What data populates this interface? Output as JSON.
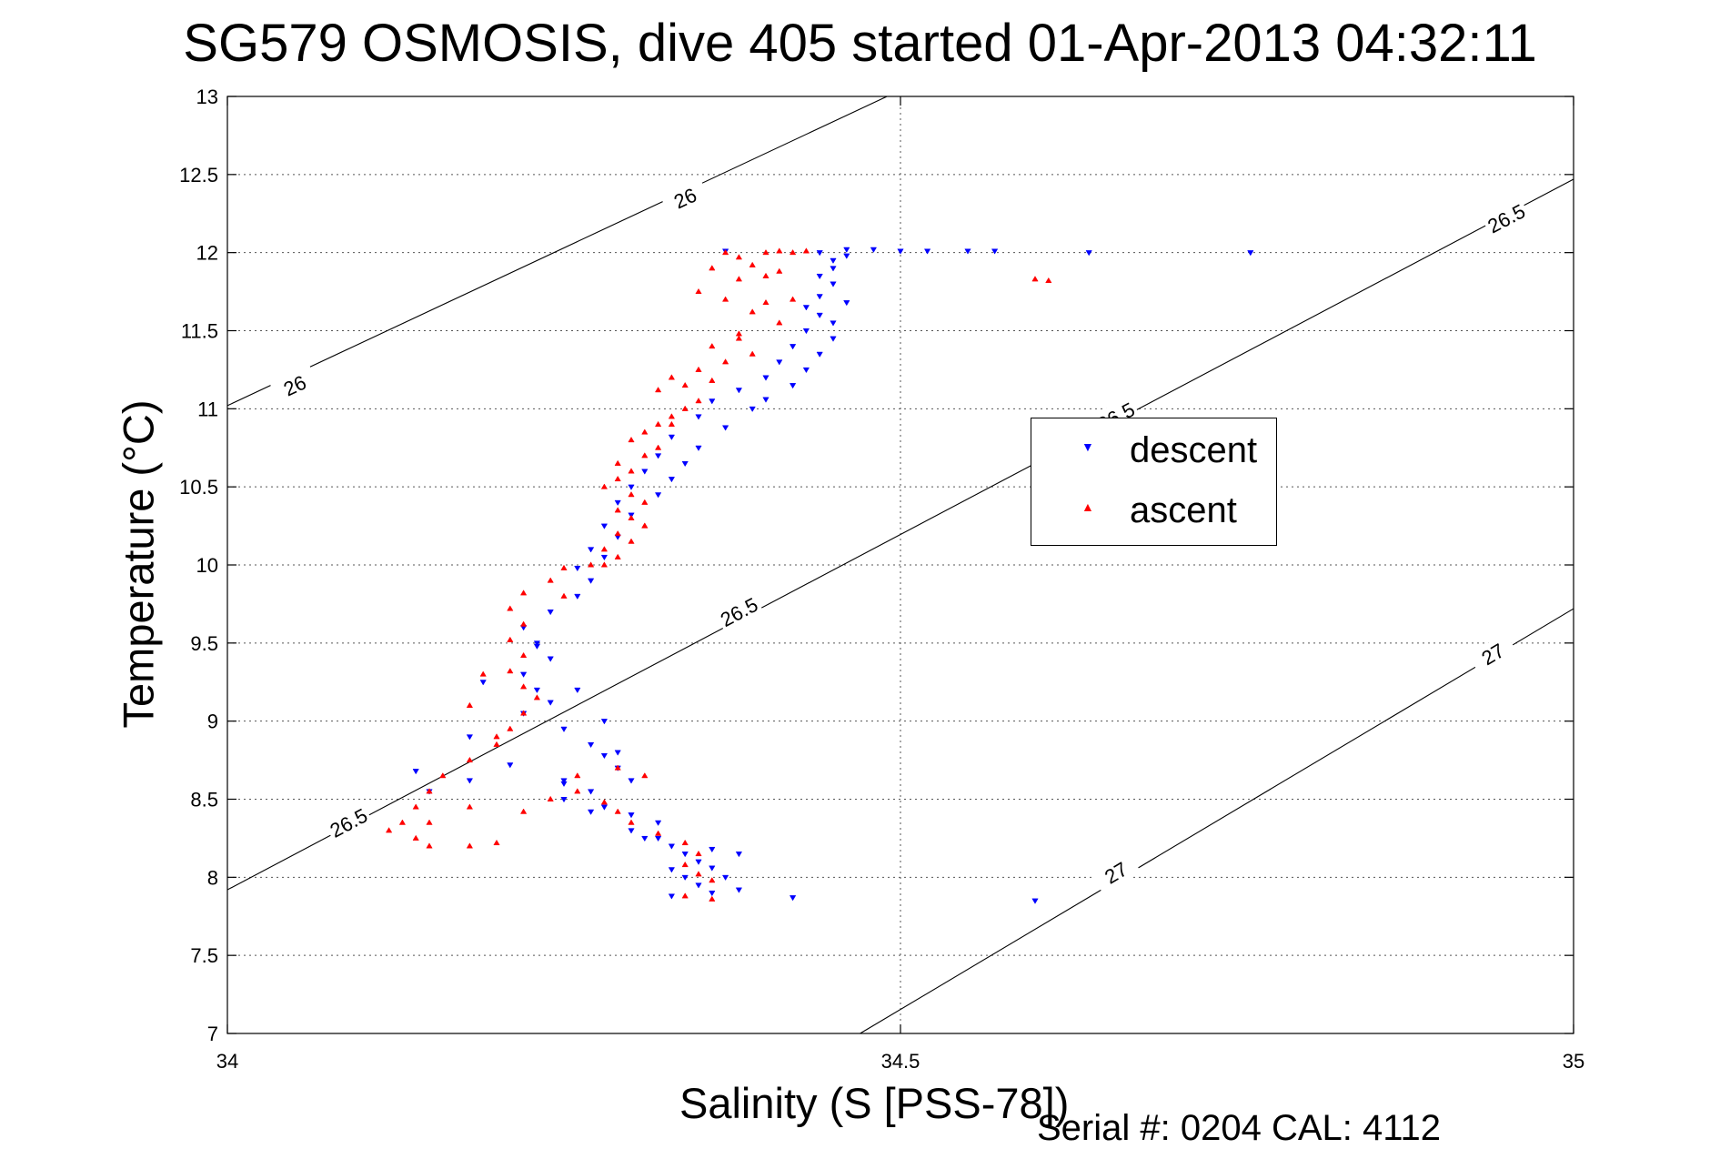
{
  "figure": {
    "title": "SG579 OSMOSIS, dive 405 started 01-Apr-2013 04:32:11",
    "xlabel": "Salinity (S [PSS-78])",
    "ylabel": "Temperature (°C)",
    "footer": "Serial #: 0204  CAL: 4112"
  },
  "legend": {
    "placement": "center-right inside axes",
    "items": [
      {
        "label": "descent",
        "marker": "▼",
        "color": "#0000ff"
      },
      {
        "label": "ascent",
        "marker": "▲",
        "color": "#ff0000"
      }
    ]
  },
  "chart_data": {
    "type": "scatter",
    "title": "SG579 OSMOSIS, dive 405 started 01-Apr-2013 04:32:11",
    "xlabel": "Salinity (S [PSS-78])",
    "ylabel": "Temperature (°C)",
    "xlim": [
      34,
      35
    ],
    "ylim": [
      7,
      13
    ],
    "xticks": [
      34,
      34.5,
      35
    ],
    "xtick_labels": [
      "34",
      "34.5",
      "35"
    ],
    "yticks": [
      7,
      7.5,
      8,
      8.5,
      9,
      9.5,
      10,
      10.5,
      11,
      11.5,
      12,
      12.5,
      13
    ],
    "ytick_labels": [
      "7",
      "7.5",
      "8",
      "8.5",
      "9",
      "9.5",
      "10",
      "10.5",
      "11",
      "11.5",
      "12",
      "12.5",
      "13"
    ],
    "grid": true,
    "legend_placement": "center-right",
    "density_contours": [
      {
        "label": "26",
        "points": [
          [
            34.0,
            11.02
          ],
          [
            34.49,
            13.0
          ]
        ],
        "label_positions": [
          [
            34.05,
            11.15
          ],
          [
            34.34,
            12.35
          ]
        ]
      },
      {
        "label": "26.5",
        "points": [
          [
            34.0,
            7.92
          ],
          [
            35.0,
            12.47
          ]
        ],
        "label_positions": [
          [
            34.09,
            8.35
          ],
          [
            34.38,
            9.7
          ],
          [
            34.66,
            10.95
          ],
          [
            34.95,
            12.22
          ]
        ]
      },
      {
        "label": "27",
        "points": [
          [
            34.47,
            7.0
          ],
          [
            35.0,
            9.72
          ]
        ],
        "label_positions": [
          [
            34.66,
            8.03
          ],
          [
            34.94,
            9.43
          ]
        ]
      }
    ],
    "series": [
      {
        "name": "descent",
        "color": "#0000ff",
        "marker": "triangle-down",
        "points": [
          [
            34.37,
            12.01
          ],
          [
            34.44,
            12.0
          ],
          [
            34.46,
            12.02
          ],
          [
            34.48,
            12.02
          ],
          [
            34.5,
            12.01
          ],
          [
            34.52,
            12.01
          ],
          [
            34.55,
            12.01
          ],
          [
            34.57,
            12.01
          ],
          [
            34.64,
            12.0
          ],
          [
            34.76,
            12.0
          ],
          [
            34.45,
            11.95
          ],
          [
            34.46,
            11.98
          ],
          [
            34.45,
            11.9
          ],
          [
            34.44,
            11.85
          ],
          [
            34.45,
            11.8
          ],
          [
            34.44,
            11.72
          ],
          [
            34.46,
            11.68
          ],
          [
            34.43,
            11.65
          ],
          [
            34.44,
            11.6
          ],
          [
            34.45,
            11.55
          ],
          [
            34.43,
            11.5
          ],
          [
            34.45,
            11.45
          ],
          [
            34.42,
            11.4
          ],
          [
            34.44,
            11.35
          ],
          [
            34.41,
            11.3
          ],
          [
            34.43,
            11.25
          ],
          [
            34.4,
            11.2
          ],
          [
            34.42,
            11.15
          ],
          [
            34.38,
            11.12
          ],
          [
            34.4,
            11.06
          ],
          [
            34.36,
            11.05
          ],
          [
            34.39,
            11.0
          ],
          [
            34.35,
            10.95
          ],
          [
            34.37,
            10.88
          ],
          [
            34.33,
            10.82
          ],
          [
            34.35,
            10.75
          ],
          [
            34.32,
            10.7
          ],
          [
            34.34,
            10.65
          ],
          [
            34.31,
            10.6
          ],
          [
            34.33,
            10.55
          ],
          [
            34.3,
            10.5
          ],
          [
            34.32,
            10.45
          ],
          [
            34.29,
            10.4
          ],
          [
            34.3,
            10.32
          ],
          [
            34.28,
            10.25
          ],
          [
            34.29,
            10.18
          ],
          [
            34.27,
            10.1
          ],
          [
            34.28,
            10.05
          ],
          [
            34.26,
            9.98
          ],
          [
            34.27,
            9.9
          ],
          [
            34.26,
            9.8
          ],
          [
            34.24,
            9.7
          ],
          [
            34.22,
            9.6
          ],
          [
            34.23,
            9.5
          ],
          [
            34.24,
            9.4
          ],
          [
            34.22,
            9.3
          ],
          [
            34.23,
            9.2
          ],
          [
            34.24,
            9.12
          ],
          [
            34.22,
            9.05
          ],
          [
            34.25,
            8.95
          ],
          [
            34.27,
            8.85
          ],
          [
            34.28,
            8.78
          ],
          [
            34.29,
            8.7
          ],
          [
            34.3,
            8.62
          ],
          [
            34.27,
            8.55
          ],
          [
            34.25,
            8.5
          ],
          [
            34.28,
            8.45
          ],
          [
            34.3,
            8.4
          ],
          [
            34.32,
            8.35
          ],
          [
            34.3,
            8.3
          ],
          [
            34.32,
            8.25
          ],
          [
            34.33,
            8.2
          ],
          [
            34.34,
            8.15
          ],
          [
            34.35,
            8.1
          ],
          [
            34.33,
            8.05
          ],
          [
            34.34,
            8.0
          ],
          [
            34.35,
            7.95
          ],
          [
            34.33,
            7.88
          ],
          [
            34.36,
            7.9
          ],
          [
            34.38,
            7.92
          ],
          [
            34.42,
            7.87
          ],
          [
            34.6,
            7.85
          ],
          [
            34.38,
            8.15
          ],
          [
            34.36,
            8.06
          ],
          [
            34.25,
            8.62
          ],
          [
            34.21,
            8.72
          ],
          [
            34.18,
            8.62
          ],
          [
            34.15,
            8.55
          ],
          [
            34.14,
            8.68
          ],
          [
            34.18,
            8.9
          ],
          [
            34.19,
            9.25
          ],
          [
            34.23,
            9.48
          ],
          [
            34.26,
            9.2
          ],
          [
            34.28,
            9.0
          ],
          [
            34.29,
            8.8
          ],
          [
            34.25,
            8.6
          ],
          [
            34.27,
            8.42
          ],
          [
            34.31,
            8.25
          ],
          [
            34.36,
            8.18
          ],
          [
            34.37,
            8.0
          ]
        ]
      },
      {
        "name": "ascent",
        "color": "#ff0000",
        "marker": "triangle-up",
        "points": [
          [
            34.41,
            12.01
          ],
          [
            34.42,
            12.0
          ],
          [
            34.43,
            12.01
          ],
          [
            34.4,
            12.0
          ],
          [
            34.38,
            11.97
          ],
          [
            34.36,
            11.9
          ],
          [
            34.39,
            11.92
          ],
          [
            34.41,
            11.88
          ],
          [
            34.38,
            11.83
          ],
          [
            34.35,
            11.75
          ],
          [
            34.37,
            11.7
          ],
          [
            34.4,
            11.68
          ],
          [
            34.42,
            11.7
          ],
          [
            34.39,
            11.62
          ],
          [
            34.41,
            11.55
          ],
          [
            34.38,
            11.48
          ],
          [
            34.36,
            11.4
          ],
          [
            34.39,
            11.35
          ],
          [
            34.37,
            11.3
          ],
          [
            34.35,
            11.25
          ],
          [
            34.33,
            11.2
          ],
          [
            34.36,
            11.18
          ],
          [
            34.34,
            11.15
          ],
          [
            34.32,
            11.12
          ],
          [
            34.35,
            11.05
          ],
          [
            34.34,
            11.0
          ],
          [
            34.33,
            10.95
          ],
          [
            34.32,
            10.9
          ],
          [
            34.31,
            10.85
          ],
          [
            34.3,
            10.8
          ],
          [
            34.32,
            10.75
          ],
          [
            34.31,
            10.7
          ],
          [
            34.29,
            10.65
          ],
          [
            34.3,
            10.6
          ],
          [
            34.29,
            10.55
          ],
          [
            34.28,
            10.5
          ],
          [
            34.3,
            10.45
          ],
          [
            34.31,
            10.4
          ],
          [
            34.29,
            10.35
          ],
          [
            34.3,
            10.3
          ],
          [
            34.31,
            10.25
          ],
          [
            34.29,
            10.2
          ],
          [
            34.3,
            10.15
          ],
          [
            34.28,
            10.1
          ],
          [
            34.29,
            10.05
          ],
          [
            34.27,
            10.0
          ],
          [
            34.25,
            9.98
          ],
          [
            34.24,
            9.9
          ],
          [
            34.22,
            9.82
          ],
          [
            34.21,
            9.72
          ],
          [
            34.22,
            9.62
          ],
          [
            34.21,
            9.52
          ],
          [
            34.22,
            9.42
          ],
          [
            34.21,
            9.32
          ],
          [
            34.22,
            9.22
          ],
          [
            34.23,
            9.15
          ],
          [
            34.22,
            9.05
          ],
          [
            34.21,
            8.95
          ],
          [
            34.2,
            8.85
          ],
          [
            34.18,
            8.75
          ],
          [
            34.16,
            8.65
          ],
          [
            34.15,
            8.55
          ],
          [
            34.14,
            8.45
          ],
          [
            34.13,
            8.35
          ],
          [
            34.14,
            8.25
          ],
          [
            34.15,
            8.2
          ],
          [
            34.18,
            8.2
          ],
          [
            34.2,
            8.22
          ],
          [
            34.22,
            8.42
          ],
          [
            34.24,
            8.5
          ],
          [
            34.26,
            8.55
          ],
          [
            34.28,
            8.48
          ],
          [
            34.29,
            8.42
          ],
          [
            34.3,
            8.35
          ],
          [
            34.32,
            8.28
          ],
          [
            34.34,
            8.22
          ],
          [
            34.35,
            8.15
          ],
          [
            34.34,
            8.08
          ],
          [
            34.35,
            8.02
          ],
          [
            34.36,
            7.98
          ],
          [
            34.34,
            7.88
          ],
          [
            34.36,
            7.86
          ],
          [
            34.6,
            11.83
          ],
          [
            34.61,
            11.82
          ],
          [
            34.26,
            8.65
          ],
          [
            34.29,
            8.7
          ],
          [
            34.31,
            8.65
          ],
          [
            34.2,
            8.9
          ],
          [
            34.18,
            9.1
          ],
          [
            34.19,
            9.3
          ],
          [
            34.12,
            8.3
          ],
          [
            34.15,
            8.35
          ],
          [
            34.18,
            8.45
          ],
          [
            34.25,
            9.8
          ],
          [
            34.28,
            10.0
          ],
          [
            34.31,
            10.25
          ],
          [
            34.33,
            10.9
          ],
          [
            34.38,
            11.45
          ],
          [
            34.4,
            11.85
          ],
          [
            34.37,
            12.0
          ]
        ]
      }
    ]
  }
}
